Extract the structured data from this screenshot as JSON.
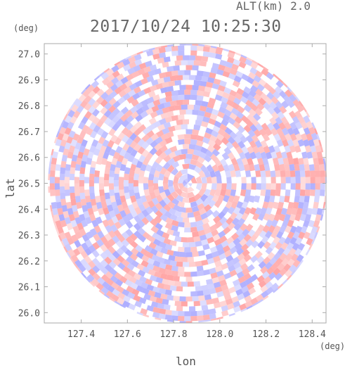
{
  "header": {
    "alt_label": "ALT(km)  2.0",
    "timestamp": "2017/10/24 10:25:30"
  },
  "chart_data": {
    "type": "heatmap",
    "title": "2017/10/24 10:25:30",
    "subtitle": "ALT(km)  2.0",
    "xlabel": "lon",
    "ylabel": "lat",
    "x_unit": "(deg)",
    "y_unit": "(deg)",
    "xlim": [
      127.24,
      128.46
    ],
    "ylim": [
      25.96,
      27.04
    ],
    "x_ticks": [
      127.4,
      127.6,
      127.8,
      128.0,
      128.2,
      128.4
    ],
    "x_tick_labels": [
      "127.4",
      "127.6",
      "127.8",
      "128.0",
      "128.2",
      "128.4"
    ],
    "y_ticks": [
      26.0,
      26.1,
      26.2,
      26.3,
      26.4,
      26.5,
      26.6,
      26.7,
      26.8,
      26.9,
      27.0
    ],
    "y_tick_labels": [
      "26.0",
      "26.1",
      "26.2",
      "26.3",
      "26.4",
      "26.5",
      "26.6",
      "26.7",
      "26.8",
      "26.9",
      "27.0"
    ],
    "field": {
      "shape": "disk",
      "center_lon": 127.86,
      "center_lat": 26.5,
      "radius_lat_deg": 0.54,
      "pattern": "radar PPI scan, alternating positive/negative velocity cells"
    },
    "colors": {
      "positive": "#ff8080",
      "negative": "#8c8cff",
      "neutral": "#ffffff",
      "frame": "#aaaaaa"
    }
  }
}
